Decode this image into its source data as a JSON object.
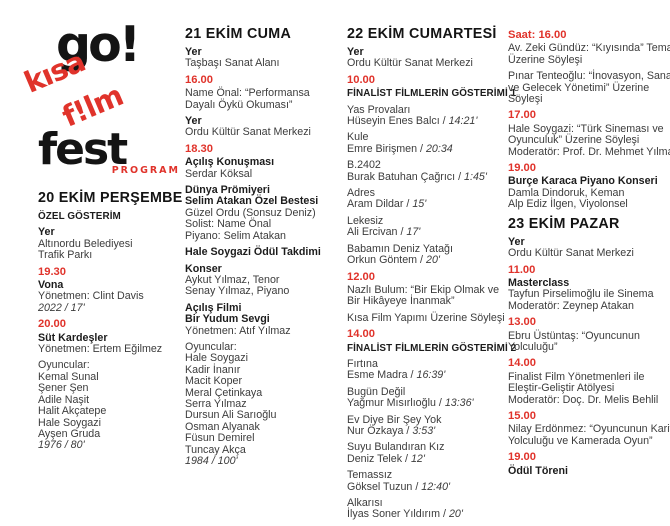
{
  "title": "go! kısa f!lm fest — Program",
  "colors": {
    "accent": "#e0332b",
    "ink": "#1c1c1c",
    "body": "#3c3c3c"
  },
  "logo": {
    "go": "go!",
    "kisa": "kısa",
    "film": "f!lm",
    "fest": "fest",
    "program": "PROGRAM"
  },
  "columns": [
    {
      "name": "20-ekim-persembe",
      "blocks": [
        {
          "lines": [
            {
              "t": "20 EKİM PERŞEMBE",
              "s": "day"
            }
          ]
        },
        {
          "lines": [
            {
              "t": "ÖZEL GÖSTERİM",
              "s": "caps"
            }
          ]
        },
        {
          "lines": [
            {
              "t": "Yer",
              "s": "b"
            },
            {
              "t": "Altınordu Belediyesi"
            },
            {
              "t": "Trafik Parkı"
            }
          ]
        },
        {
          "lines": [
            {
              "t": "19.30",
              "s": "time"
            }
          ]
        },
        {
          "lines": [
            {
              "t": "Vona",
              "s": "b"
            },
            {
              "t": "Yönetmen: Clint Davis"
            },
            {
              "t": "2022 / 17'",
              "s": "i"
            }
          ]
        },
        {
          "lines": [
            {
              "t": "20.00",
              "s": "time"
            }
          ]
        },
        {
          "lines": [
            {
              "t": "Süt Kardeşler",
              "s": "b"
            },
            {
              "t": "Yönetmen: Ertem Eğilmez"
            }
          ]
        },
        {
          "lines": [
            {
              "t": "Oyuncular:"
            },
            {
              "t": "Kemal Sunal"
            },
            {
              "t": "Şener Şen"
            },
            {
              "t": "Adile Naşit"
            },
            {
              "t": "Halit Akçatepe"
            },
            {
              "t": "Hale Soygazi"
            },
            {
              "t": "Ayşen Gruda"
            },
            {
              "t": "1976 / 80'",
              "s": "i"
            }
          ]
        }
      ]
    },
    {
      "name": "21-ekim-cuma",
      "blocks": [
        {
          "lines": [
            {
              "t": "21 EKİM CUMA",
              "s": "day"
            }
          ]
        },
        {
          "lines": [
            {
              "t": "Yer",
              "s": "b"
            },
            {
              "t": "Taşbaşı Sanat Alanı"
            }
          ]
        },
        {
          "lines": [
            {
              "t": "16.00",
              "s": "time"
            }
          ]
        },
        {
          "lines": [
            {
              "t": "Name Önal: “Performansa"
            },
            {
              "t": "Dayalı Öykü Okuması”"
            }
          ]
        },
        {
          "lines": [
            {
              "t": "Yer",
              "s": "b"
            },
            {
              "t": "Ordu Kültür Sanat Merkezi"
            }
          ]
        },
        {
          "lines": [
            {
              "t": "18.30",
              "s": "time"
            }
          ]
        },
        {
          "lines": [
            {
              "t": "Açılış Konuşması",
              "s": "b"
            },
            {
              "t": "Serdar Köksal"
            }
          ]
        },
        {
          "lines": [
            {
              "t": "Dünya Prömiyeri",
              "s": "b"
            },
            {
              "t": "Selim Atakan Özel Bestesi",
              "s": "b"
            },
            {
              "t": "Güzel Ordu (Sonsuz Deniz)"
            },
            {
              "t": "Solist: Name Önal"
            },
            {
              "t": "Piyano: Selim Atakan"
            }
          ]
        },
        {
          "lines": [
            {
              "t": "Hale Soygazi Ödül Takdimi",
              "s": "b"
            }
          ]
        },
        {
          "lines": [
            {
              "t": "Konser",
              "s": "b"
            },
            {
              "t": "Aykut Yılmaz, Tenor"
            },
            {
              "t": "Senay Yılmaz, Piyano"
            }
          ]
        },
        {
          "lines": [
            {
              "t": "Açılış Filmi",
              "s": "b"
            },
            {
              "t": "Bir Yudum Sevgi",
              "s": "b"
            },
            {
              "t": "Yönetmen: Atıf Yılmaz"
            }
          ]
        },
        {
          "lines": [
            {
              "t": "Oyuncular:"
            },
            {
              "t": "Hale Soygazi"
            },
            {
              "t": "Kadir İnanır"
            },
            {
              "t": "Macit Koper"
            },
            {
              "t": "Meral Çetinkaya"
            },
            {
              "t": "Serra Yılmaz"
            },
            {
              "t": "Dursun Ali Sarıoğlu"
            },
            {
              "t": "Osman Alyanak"
            },
            {
              "t": "Füsun Demirel"
            },
            {
              "t": "Tuncay Akça"
            },
            {
              "t": "1984 / 100'",
              "s": "i"
            }
          ]
        }
      ]
    },
    {
      "name": "22-ekim-cumartesi",
      "blocks": [
        {
          "lines": [
            {
              "t": "22 EKİM CUMARTESİ",
              "s": "day"
            }
          ]
        },
        {
          "lines": [
            {
              "t": "Yer",
              "s": "b"
            },
            {
              "t": "Ordu Kültür Sanat Merkezi"
            }
          ]
        },
        {
          "lines": [
            {
              "t": "10.00",
              "s": "time"
            }
          ]
        },
        {
          "lines": [
            {
              "t": "FİNALİST FİLMLERİN GÖSTERİMİ 1",
              "s": "caps"
            }
          ]
        },
        {
          "lines": [
            {
              "t": "Yas Provaları"
            },
            {
              "t": "Hüseyin Enes Balcı / ",
              "it": "14:21'"
            }
          ]
        },
        {
          "lines": [
            {
              "t": "Kule"
            },
            {
              "t": "Emre Birişmen / ",
              "it": "20:34"
            }
          ]
        },
        {
          "lines": [
            {
              "t": "B.2402"
            },
            {
              "t": "Burak Batuhan Çağrıcı / ",
              "it": "1:45'"
            }
          ]
        },
        {
          "lines": [
            {
              "t": "Adres"
            },
            {
              "t": "Aram Dildar / ",
              "it": "15'"
            }
          ]
        },
        {
          "lines": [
            {
              "t": "Lekesiz"
            },
            {
              "t": "Ali Ercivan / ",
              "it": "17'"
            }
          ]
        },
        {
          "lines": [
            {
              "t": "Babamın Deniz Yatağı"
            },
            {
              "t": "Orkun Göntem / ",
              "it": "20'"
            }
          ]
        },
        {
          "lines": [
            {
              "t": "12.00",
              "s": "time"
            }
          ]
        },
        {
          "lines": [
            {
              "t": "Nazlı Bulum: “Bir Ekip Olmak ve"
            },
            {
              "t": "Bir Hikâyeye İnanmak”"
            }
          ]
        },
        {
          "lines": [
            {
              "t": "Kısa Film Yapımı Üzerine Söyleşi"
            }
          ]
        },
        {
          "lines": [
            {
              "t": "14.00",
              "s": "time"
            }
          ]
        },
        {
          "lines": [
            {
              "t": "FİNALİST FİLMLERİN GÖSTERİMİ 2",
              "s": "caps"
            }
          ]
        },
        {
          "lines": [
            {
              "t": "Fırtına"
            },
            {
              "t": "Esme Madra / ",
              "it": "16:39'"
            }
          ]
        },
        {
          "lines": [
            {
              "t": "Bugün Değil"
            },
            {
              "t": "Yağmur Mısırlıoğlu / ",
              "it": "13:36'"
            }
          ]
        },
        {
          "lines": [
            {
              "t": "Ev Diye Bir Şey Yok"
            },
            {
              "t": "Nur Özkaya / ",
              "it": "3:53'"
            }
          ]
        },
        {
          "lines": [
            {
              "t": "Suyu Bulandıran Kız"
            },
            {
              "t": "Deniz Telek / ",
              "it": "12'"
            }
          ]
        },
        {
          "lines": [
            {
              "t": "Temassız"
            },
            {
              "t": "Göksel Tuzun / ",
              "it": "12:40'"
            }
          ]
        },
        {
          "lines": [
            {
              "t": "Alkarısı"
            },
            {
              "t": "İlyas Soner Yıldırım / ",
              "it": "20'"
            }
          ]
        }
      ]
    },
    {
      "name": "23-ekim-pazar",
      "blocks": [
        {
          "lines": [
            {
              "t": "Saat: 16.00",
              "s": "time"
            }
          ]
        },
        {
          "lines": [
            {
              "t": "Av. Zeki Gündüz: “Kıyısında” Tema"
            },
            {
              "t": "Üzerine Söyleşi"
            }
          ]
        },
        {
          "lines": [
            {
              "t": "Pınar Tenteoğlu: “İnovasyon, Sanat"
            },
            {
              "t": "ve Gelecek Yönetimi” Üzerine"
            },
            {
              "t": "Söyleşi"
            }
          ]
        },
        {
          "lines": [
            {
              "t": "17.00",
              "s": "time"
            }
          ]
        },
        {
          "lines": [
            {
              "t": "Hale Soygazi: “Türk Sineması ve"
            },
            {
              "t": "Oyunculuk” Üzerine Söyleşi"
            },
            {
              "t": "Moderatör: Prof. Dr. Mehmet Yılmaz"
            }
          ]
        },
        {
          "lines": [
            {
              "t": "19.00",
              "s": "time"
            }
          ]
        },
        {
          "lines": [
            {
              "t": "Burçe Karaca Piyano Konseri",
              "s": "b"
            },
            {
              "t": "Damla Dindoruk, Keman"
            },
            {
              "t": "Alp Ediz İlgen, Viyolonsel"
            }
          ]
        },
        {
          "lines": [
            {
              "t": "23 EKİM PAZAR",
              "s": "day"
            }
          ]
        },
        {
          "lines": [
            {
              "t": "Yer",
              "s": "b"
            },
            {
              "t": "Ordu Kültür Sanat Merkezi"
            }
          ]
        },
        {
          "lines": [
            {
              "t": "11.00",
              "s": "time"
            }
          ]
        },
        {
          "lines": [
            {
              "t": "Masterclass",
              "s": "b"
            },
            {
              "t": "Tayfun Pirselimoğlu ile Sinema"
            },
            {
              "t": "Moderatör: Zeynep Atakan"
            }
          ]
        },
        {
          "lines": [
            {
              "t": "13.00",
              "s": "time"
            }
          ]
        },
        {
          "lines": [
            {
              "t": "Ebru Üstüntaş: “Oyuncunun"
            },
            {
              "t": "Yolculuğu”"
            }
          ]
        },
        {
          "lines": [
            {
              "t": "14.00",
              "s": "time"
            }
          ]
        },
        {
          "lines": [
            {
              "t": "Finalist Film Yönetmenleri ile"
            },
            {
              "t": "Eleştir-Geliştir Atölyesi"
            },
            {
              "t": "Moderatör: Doç. Dr. Melis Behlil"
            }
          ]
        },
        {
          "lines": [
            {
              "t": "15.00",
              "s": "time"
            }
          ]
        },
        {
          "lines": [
            {
              "t": "Nilay Erdönmez: “Oyuncunun Kariyer"
            },
            {
              "t": "Yolculuğu ve Kamerada Oyun”"
            }
          ]
        },
        {
          "lines": [
            {
              "t": "19.00",
              "s": "time"
            }
          ]
        },
        {
          "lines": [
            {
              "t": "Ödül Töreni",
              "s": "b"
            }
          ]
        }
      ]
    }
  ]
}
